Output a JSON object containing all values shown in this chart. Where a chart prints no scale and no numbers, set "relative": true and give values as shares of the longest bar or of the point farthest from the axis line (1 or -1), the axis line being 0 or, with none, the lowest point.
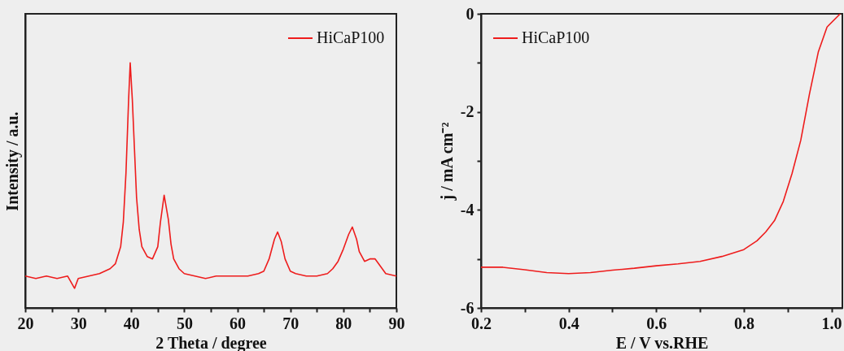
{
  "chart_data": [
    {
      "type": "line",
      "xlabel": "2 Theta / degree",
      "ylabel": "Intensity / a.u.",
      "relative": true,
      "legend": "top right",
      "xlim": [
        20,
        90
      ],
      "xticks": [
        20,
        {
          "value": 25,
          "label": null
        },
        30,
        {
          "value": 35,
          "label": null
        },
        40,
        {
          "value": 45,
          "label": null
        },
        50,
        {
          "value": 55,
          "label": null
        },
        60,
        {
          "value": 65,
          "label": null
        },
        70,
        {
          "value": 75,
          "label": null
        },
        80,
        {
          "value": 85,
          "label": null
        },
        90
      ],
      "series": [
        {
          "name": "HiCaP100",
          "color": "#ee1c1c",
          "x": [
            20,
            22,
            24,
            26,
            28,
            29.3,
            30,
            32,
            34,
            35,
            36,
            37,
            38,
            38.5,
            39,
            39.5,
            39.8,
            40.2,
            40.6,
            41,
            41.5,
            42,
            43,
            44,
            45,
            45.5,
            46.2,
            47,
            47.5,
            48,
            49,
            50,
            52,
            54,
            56,
            58,
            60,
            62,
            64,
            65,
            66,
            67,
            67.6,
            68.3,
            69,
            70,
            71,
            73,
            75,
            77,
            78,
            79,
            80,
            81,
            81.7,
            82.5,
            83,
            84,
            85,
            86,
            87,
            88,
            90
          ],
          "values": [
            0.13,
            0.12,
            0.13,
            0.12,
            0.13,
            0.08,
            0.12,
            0.13,
            0.14,
            0.15,
            0.16,
            0.18,
            0.25,
            0.35,
            0.55,
            0.85,
            1.0,
            0.85,
            0.65,
            0.45,
            0.32,
            0.25,
            0.21,
            0.2,
            0.25,
            0.35,
            0.46,
            0.36,
            0.26,
            0.2,
            0.16,
            0.14,
            0.13,
            0.12,
            0.13,
            0.13,
            0.13,
            0.13,
            0.14,
            0.15,
            0.2,
            0.28,
            0.31,
            0.27,
            0.2,
            0.15,
            0.14,
            0.13,
            0.13,
            0.14,
            0.16,
            0.19,
            0.24,
            0.3,
            0.33,
            0.28,
            0.23,
            0.19,
            0.2,
            0.2,
            0.17,
            0.14,
            0.13
          ]
        }
      ]
    },
    {
      "type": "line",
      "xlabel": "E / V vs.RHE",
      "ylabel": "j / mA cm⁻²",
      "legend": "top left",
      "xlim": [
        0.2,
        1.025
      ],
      "xticks": [
        0.2,
        {
          "value": 0.3,
          "label": null
        },
        0.4,
        {
          "value": 0.5,
          "label": null
        },
        0.6,
        {
          "value": 0.7,
          "label": null
        },
        0.8,
        {
          "value": 0.9,
          "label": null
        },
        {
          "value": 1,
          "label": "1.0"
        }
      ],
      "ylim": [
        -6,
        0
      ],
      "yticks": [
        -6,
        {
          "value": -5,
          "label": null
        },
        -4,
        {
          "value": -3,
          "label": null
        },
        -2,
        {
          "value": -1,
          "label": null
        },
        0
      ],
      "series": [
        {
          "name": "HiCaP100",
          "color": "#ee1c1c",
          "x": [
            0.2,
            0.25,
            0.3,
            0.35,
            0.4,
            0.45,
            0.5,
            0.55,
            0.6,
            0.65,
            0.7,
            0.75,
            0.8,
            0.83,
            0.85,
            0.87,
            0.89,
            0.91,
            0.93,
            0.95,
            0.97,
            0.99,
            1.02
          ],
          "values": [
            -5.17,
            -5.17,
            -5.22,
            -5.28,
            -5.3,
            -5.28,
            -5.23,
            -5.19,
            -5.14,
            -5.1,
            -5.05,
            -4.95,
            -4.81,
            -4.63,
            -4.45,
            -4.22,
            -3.83,
            -3.26,
            -2.58,
            -1.63,
            -0.78,
            -0.27,
            0
          ]
        }
      ]
    }
  ]
}
